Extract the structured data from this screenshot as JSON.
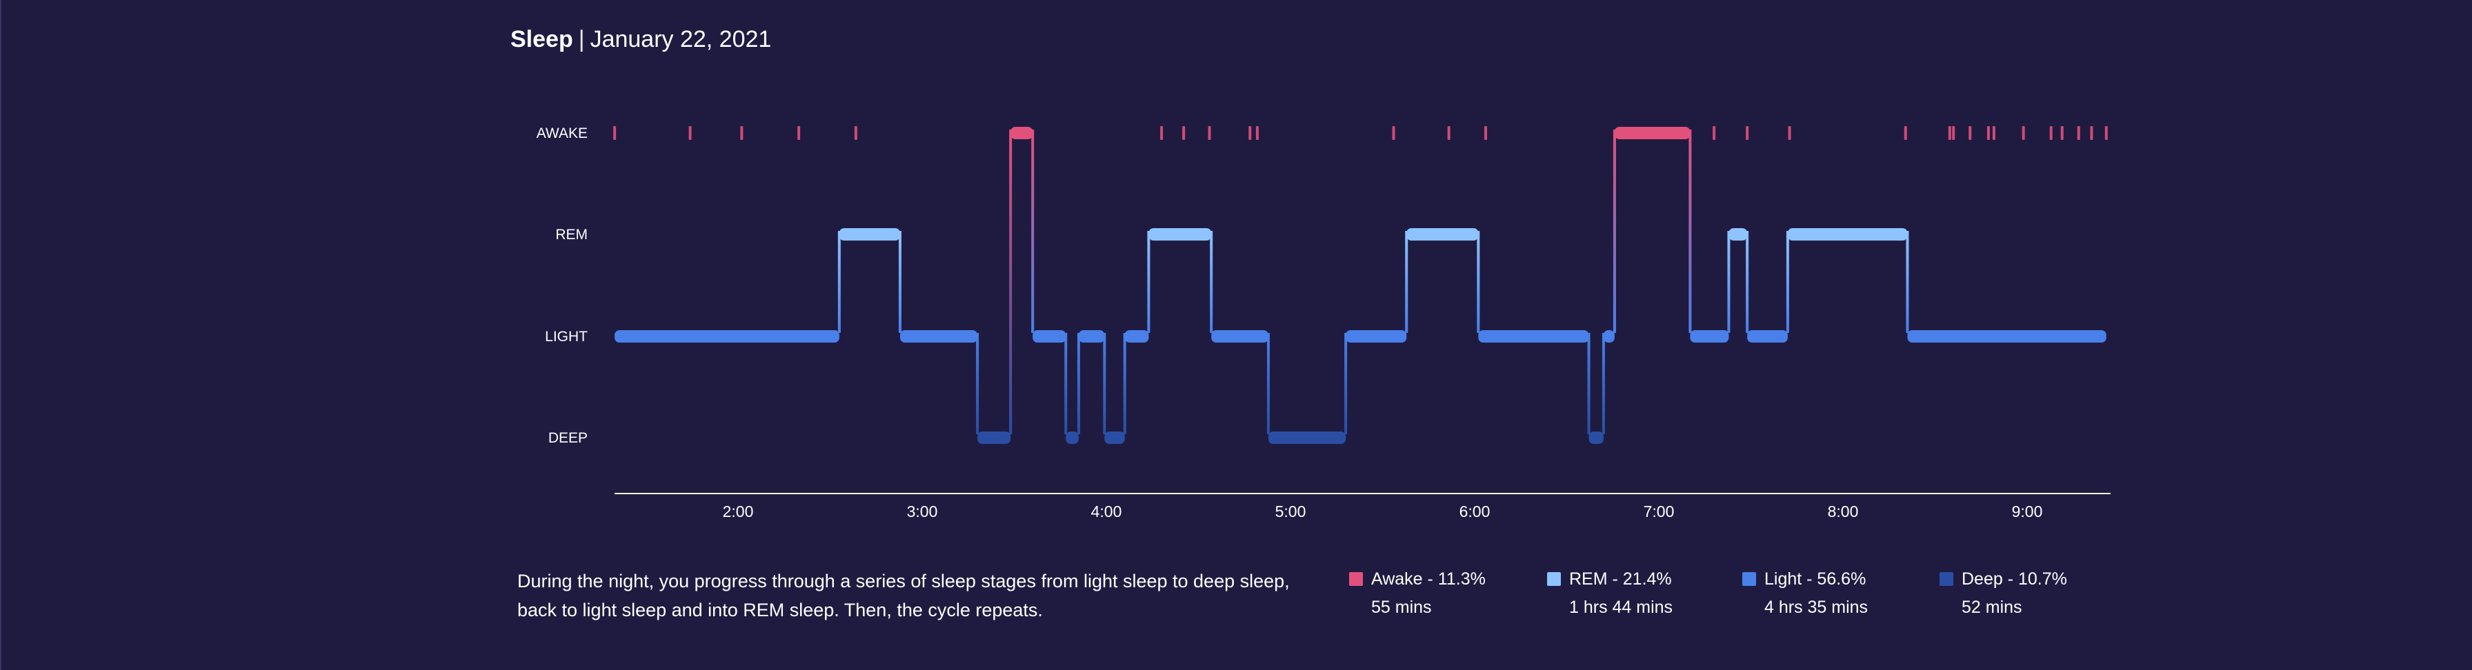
{
  "header": {
    "title": "Sleep",
    "separator": "|",
    "date": "January 22, 2021"
  },
  "chart_data": {
    "type": "step-hypnogram",
    "stages": [
      "AWAKE",
      "REM",
      "LIGHT",
      "DEEP"
    ],
    "x_ticks": [
      "2:00",
      "3:00",
      "4:00",
      "5:00",
      "6:00",
      "7:00",
      "8:00",
      "9:00"
    ],
    "x_range_hours": [
      1.33,
      9.43
    ],
    "colors": {
      "AWAKE": "#e2517c",
      "REM": "#8fc3ff",
      "LIGHT": "#4a80ea",
      "DEEP": "#2a4ea3"
    },
    "segments": [
      {
        "stage": "LIGHT",
        "start": 1.33,
        "end": 2.55
      },
      {
        "stage": "REM",
        "start": 2.55,
        "end": 2.88
      },
      {
        "stage": "LIGHT",
        "start": 2.88,
        "end": 3.3
      },
      {
        "stage": "DEEP",
        "start": 3.3,
        "end": 3.48
      },
      {
        "stage": "AWAKE",
        "start": 3.48,
        "end": 3.6
      },
      {
        "stage": "LIGHT",
        "start": 3.6,
        "end": 3.78
      },
      {
        "stage": "DEEP",
        "start": 3.78,
        "end": 3.85
      },
      {
        "stage": "LIGHT",
        "start": 3.85,
        "end": 3.99
      },
      {
        "stage": "DEEP",
        "start": 3.99,
        "end": 4.1
      },
      {
        "stage": "LIGHT",
        "start": 4.1,
        "end": 4.23
      },
      {
        "stage": "REM",
        "start": 4.23,
        "end": 4.57
      },
      {
        "stage": "LIGHT",
        "start": 4.57,
        "end": 4.88
      },
      {
        "stage": "DEEP",
        "start": 4.88,
        "end": 5.3
      },
      {
        "stage": "LIGHT",
        "start": 5.3,
        "end": 5.63
      },
      {
        "stage": "REM",
        "start": 5.63,
        "end": 6.02
      },
      {
        "stage": "LIGHT",
        "start": 6.02,
        "end": 6.62
      },
      {
        "stage": "DEEP",
        "start": 6.62,
        "end": 6.7
      },
      {
        "stage": "LIGHT",
        "start": 6.7,
        "end": 6.76
      },
      {
        "stage": "AWAKE",
        "start": 6.76,
        "end": 7.17
      },
      {
        "stage": "LIGHT",
        "start": 7.17,
        "end": 7.38
      },
      {
        "stage": "REM",
        "start": 7.38,
        "end": 7.48
      },
      {
        "stage": "LIGHT",
        "start": 7.48,
        "end": 7.7
      },
      {
        "stage": "REM",
        "start": 7.7,
        "end": 8.35
      },
      {
        "stage": "LIGHT",
        "start": 8.35,
        "end": 9.43
      }
    ],
    "awake_blips": [
      1.33,
      1.74,
      2.02,
      2.33,
      2.64,
      4.3,
      4.42,
      4.56,
      4.78,
      4.82,
      5.56,
      5.86,
      6.06,
      7.3,
      7.48,
      7.71,
      8.34,
      8.58,
      8.6,
      8.69,
      8.79,
      8.82,
      8.98,
      9.13,
      9.19,
      9.28,
      9.35,
      9.43
    ],
    "legend": [
      {
        "stage": "AWAKE",
        "label": "Awake - 11.3%",
        "duration": "55 mins"
      },
      {
        "stage": "REM",
        "label": "REM - 21.4%",
        "duration": "1 hrs 44 mins"
      },
      {
        "stage": "LIGHT",
        "label": "Light - 56.6%",
        "duration": "4 hrs 35 mins"
      },
      {
        "stage": "DEEP",
        "label": "Deep - 10.7%",
        "duration": "52 mins"
      }
    ]
  },
  "description": "During the night, you progress through a series of sleep stages from light sleep to deep sleep, back to light sleep and into REM sleep. Then, the cycle repeats."
}
